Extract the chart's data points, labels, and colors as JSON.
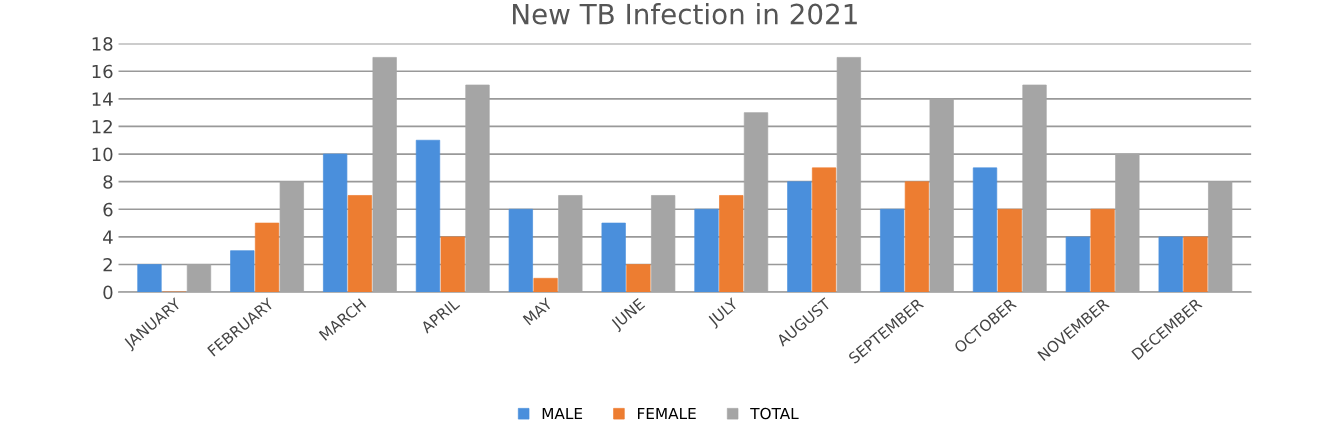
{
  "chart_data": {
    "type": "bar",
    "title": "New TB Infection in 2021",
    "categories": [
      "JANUARY",
      "FEBRUARY",
      "MARCH",
      "APRIL",
      "MAY",
      "JUNE",
      "JULY",
      "AUGUST",
      "SEPTEMBER",
      "OCTOBER",
      "NOVEMBER",
      "DECEMBER"
    ],
    "series": [
      {
        "name": "MALE",
        "color": "#4a8fdc",
        "values": [
          2,
          3,
          10,
          11,
          6,
          5,
          6,
          8,
          6,
          9,
          4,
          4
        ]
      },
      {
        "name": "FEMALE",
        "color": "#ed7d31",
        "values": [
          0,
          5,
          7,
          4,
          1,
          2,
          7,
          9,
          8,
          6,
          6,
          4
        ]
      },
      {
        "name": "TOTAL",
        "color": "#a5a5a5",
        "values": [
          2,
          8,
          17,
          15,
          7,
          7,
          13,
          17,
          14,
          15,
          10,
          8
        ]
      }
    ],
    "ylim": [
      0,
      18
    ],
    "yticks": [
      0,
      2,
      4,
      6,
      8,
      10,
      12,
      14,
      16,
      18
    ],
    "grid": "y",
    "legend": "bottom"
  }
}
